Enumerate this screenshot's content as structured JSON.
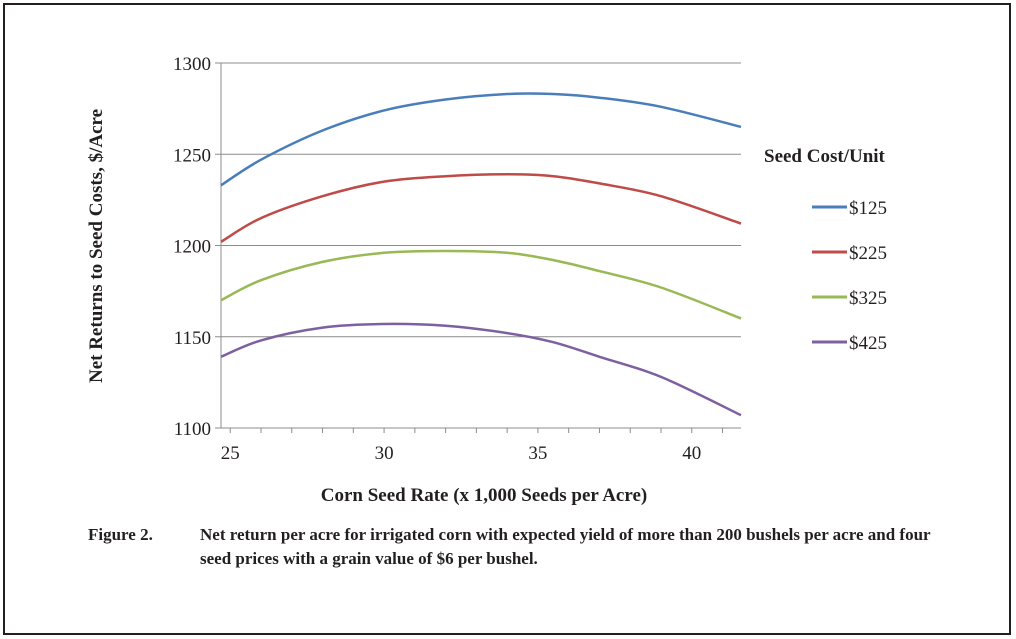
{
  "chart_data": {
    "type": "line",
    "xlabel": "Corn Seed Rate (x 1,000 Seeds per Acre)",
    "ylabel": "Net Returns to Seed Costs, $/Acre",
    "xlim": [
      24.7,
      41.6
    ],
    "ylim": [
      1100,
      1300
    ],
    "x_ticks": [
      25,
      30,
      35,
      40
    ],
    "y_ticks": [
      1100,
      1150,
      1200,
      1250,
      1300
    ],
    "grid": "horizontal",
    "legend_title": "Seed Cost/Unit",
    "legend_position": "right",
    "x": [
      24.7,
      26,
      28,
      30,
      32,
      34,
      35.5,
      37,
      39,
      41.6
    ],
    "series": [
      {
        "name": "$125",
        "color": "#4a7ebb",
        "values": [
          1233,
          1247,
          1263,
          1274,
          1280,
          1283,
          1283,
          1281,
          1276,
          1265
        ]
      },
      {
        "name": "$225",
        "color": "#be4b48",
        "values": [
          1202,
          1215,
          1227,
          1235,
          1238,
          1239,
          1238,
          1234,
          1227,
          1212
        ]
      },
      {
        "name": "$325",
        "color": "#98b954",
        "values": [
          1170,
          1181,
          1191,
          1196,
          1197,
          1196,
          1192,
          1186,
          1177,
          1160
        ]
      },
      {
        "name": "$425",
        "color": "#7d60a0",
        "values": [
          1139,
          1148,
          1155,
          1157,
          1156,
          1152,
          1147,
          1139,
          1128,
          1107
        ]
      }
    ]
  },
  "caption": {
    "label": "Figure 2.",
    "text": "Net return per acre for irrigated corn with expected yield of more than 200 bushels per acre and four seed prices with a grain value of $6 per bushel."
  }
}
